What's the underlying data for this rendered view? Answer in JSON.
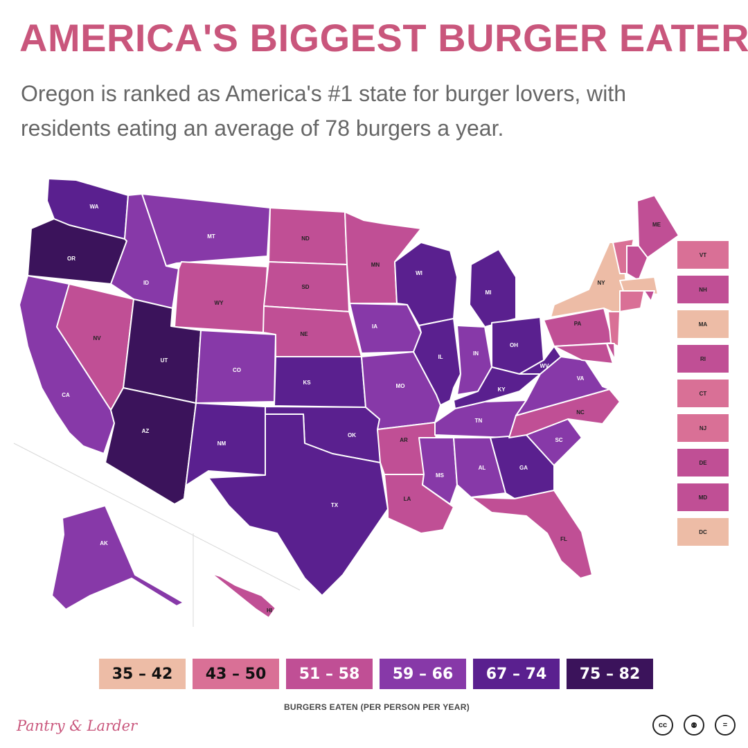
{
  "title": "AMERICA'S BIGGEST BURGER EATERS",
  "subtitle": "Oregon is ranked as America's #1 state for burger lovers, with residents eating an average of 78 burgers a year.",
  "legend": {
    "caption": "BURGERS EATEN (PER PERSON PER YEAR)",
    "bins": [
      {
        "label": "35 – 42",
        "color": "#edbca6",
        "text_color": "#111111"
      },
      {
        "label": "43 – 50",
        "color": "#d97096",
        "text_color": "#111111"
      },
      {
        "label": "51 – 58",
        "color": "#c04f95",
        "text_color": "#ffffff"
      },
      {
        "label": "59 – 66",
        "color": "#8739a8",
        "text_color": "#ffffff"
      },
      {
        "label": "67 – 74",
        "color": "#5a208f",
        "text_color": "#ffffff"
      },
      {
        "label": "75 – 82",
        "color": "#3b135b",
        "text_color": "#ffffff"
      }
    ]
  },
  "states": {
    "WA": 4,
    "OR": 5,
    "CA": 3,
    "NV": 2,
    "ID": 3,
    "MT": 3,
    "WY": 2,
    "UT": 5,
    "AZ": 5,
    "CO": 3,
    "NM": 4,
    "ND": 2,
    "SD": 2,
    "NE": 2,
    "KS": 4,
    "OK": 4,
    "TX": 4,
    "MN": 2,
    "IA": 3,
    "MO": 3,
    "AR": 2,
    "LA": 2,
    "WI": 4,
    "IL": 4,
    "MI": 4,
    "IN": 3,
    "OH": 4,
    "KY": 4,
    "TN": 3,
    "MS": 3,
    "AL": 3,
    "GA": 4,
    "FL": 2,
    "SC": 3,
    "NC": 2,
    "VA": 3,
    "WV": 4,
    "PA": 2,
    "NY": 0,
    "ME": 2,
    "AK": 3,
    "HI": 2,
    "VT": 1,
    "NH": 2,
    "MA": 0,
    "RI": 2,
    "CT": 1,
    "NJ": 1,
    "DE": 2,
    "MD": 2,
    "DC": 0
  },
  "side_states": [
    "VT",
    "NH",
    "MA",
    "RI",
    "CT",
    "NJ",
    "DE",
    "MD",
    "DC"
  ],
  "brand": "Pantry & Larder",
  "license_icons": [
    {
      "name": "cc-icon",
      "glyph": "cc"
    },
    {
      "name": "attribution-icon",
      "glyph": "⚉"
    },
    {
      "name": "noderivs-icon",
      "glyph": "="
    }
  ]
}
